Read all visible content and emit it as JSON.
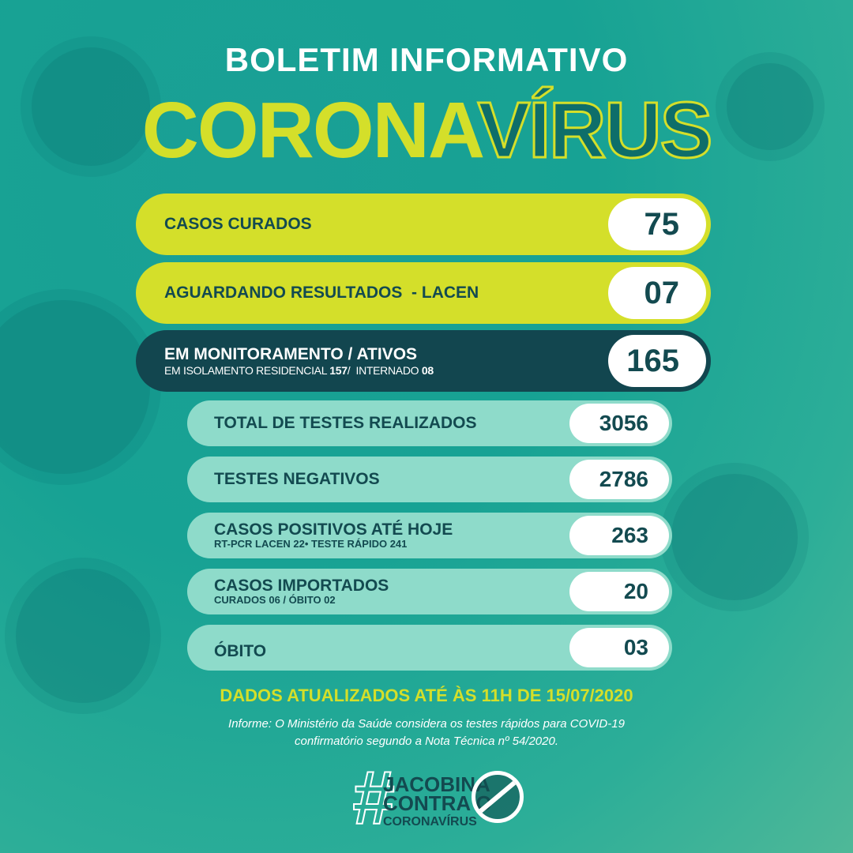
{
  "header": {
    "title": "BOLETIM INFORMATIVO",
    "word_filled": "CORONA",
    "word_outline": "VÍRUS"
  },
  "colors": {
    "accent_yellow": "#d4df2a",
    "dark_teal": "#12464f",
    "light_teal": "#8edbca",
    "text_dark": "#134a50"
  },
  "main_stats": [
    {
      "label": "CASOS CURADOS",
      "value": "75"
    },
    {
      "label": "AGUARDANDO RESULTADOS  - LACEN",
      "value": "07"
    },
    {
      "label": "EM MONITORAMENTO / ATIVOS",
      "sub_prefix": "EM ISOLAMENTO RESIDENCIAL ",
      "sub_isolated": "157",
      "sub_mid": "/  INTERNADO ",
      "sub_hospitalized": "08",
      "value": "165"
    }
  ],
  "secondary_stats": [
    {
      "label": "TOTAL DE TESTES REALIZADOS",
      "sub": "",
      "value": "3056"
    },
    {
      "label": "TESTES NEGATIVOS",
      "sub": "",
      "value": "2786"
    },
    {
      "label": "CASOS POSITIVOS ATÉ HOJE",
      "sub": "RT-PCR LACEN 22• TESTE RÁPIDO 241",
      "value": "263"
    },
    {
      "label": "CASOS IMPORTADOS",
      "sub": "CURADOS 06 / ÓBITO 02",
      "value": "20"
    },
    {
      "label": "ÓBITO",
      "sub": "",
      "value": "03"
    }
  ],
  "footer": {
    "updated": "DADOS ATUALIZADOS ATÉ ÀS 11H DE 15/07/2020",
    "info_line1": "Informe: O Ministério da Saúde considera os testes rápidos para COVID-19",
    "info_line2": "confirmatório segundo a Nota Técnica nº 54/2020.",
    "logo": {
      "hash": "#",
      "line1": "JACOBINA",
      "line2": "CONTRA O",
      "line3": "CORONAVÍRUS",
      "icon": "no-virus-icon"
    }
  }
}
